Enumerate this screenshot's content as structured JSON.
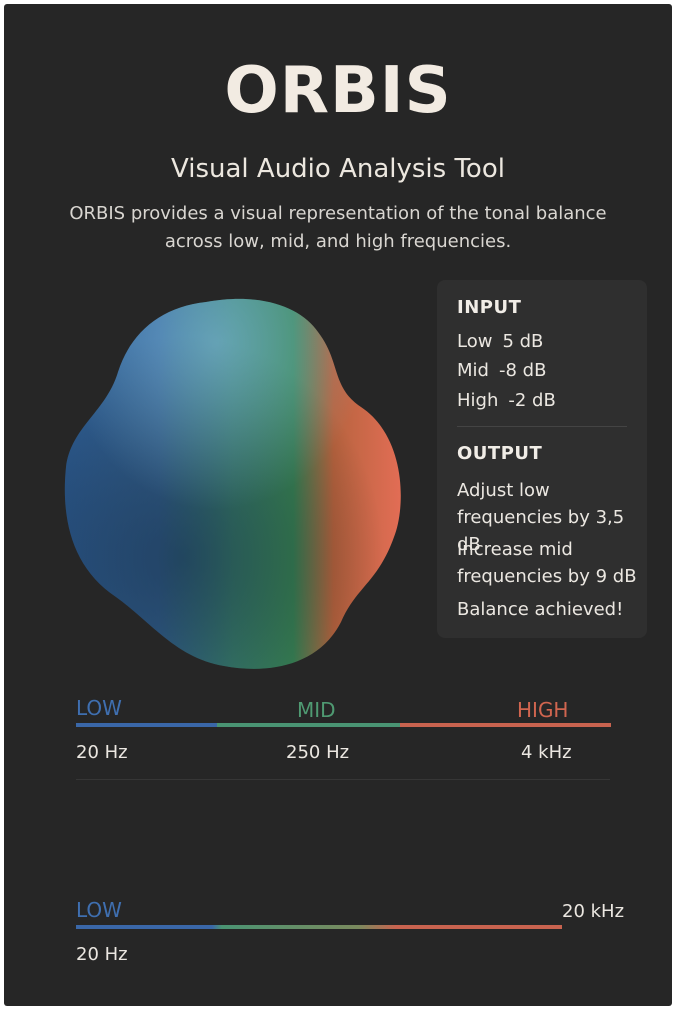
{
  "header": {
    "title": "ORBIS",
    "subtitle": "Visual Audio Analysis Tool",
    "description_line1": "ORBIS provides a visual representation of the tonal balance",
    "description_line2": "across low, mid, and high frequencies."
  },
  "panel": {
    "input_heading": "INPUT",
    "inputs": [
      {
        "label": "Low",
        "value": "5 dB"
      },
      {
        "label": "Mid",
        "value": "-8 dB"
      },
      {
        "label": "High",
        "value": "-2 dB"
      }
    ],
    "output_heading": "OUTPUT",
    "outputs": [
      {
        "line1": "Adjust low",
        "line2": "frequencies by 3,5 dB"
      },
      {
        "line1": "Increase mid",
        "line2": "frequencies by 9 dB"
      }
    ],
    "status": "Balance achieved!"
  },
  "bands": {
    "low_label": "LOW",
    "mid_label": "MID",
    "high_label": "HIGH",
    "freqs": [
      "20 Hz",
      "250 Hz",
      "4 kHz"
    ]
  },
  "range": {
    "low_label": "LOW",
    "max_label": "20 kHz",
    "min_label": "20 Hz"
  },
  "colors": {
    "low": "#3f6fb0",
    "mid": "#4f9a72",
    "high": "#d0654f"
  }
}
